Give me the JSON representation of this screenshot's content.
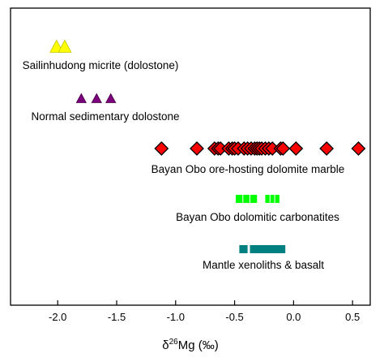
{
  "chart_data": {
    "type": "scatter",
    "xlim": [
      -2.4,
      0.65
    ],
    "xticks": [
      -2.0,
      -1.5,
      -1.0,
      -0.5,
      0.0,
      0.5
    ],
    "xtick_labels": [
      "-2.0",
      "-1.5",
      "-1.0",
      "-0.5",
      "0.0",
      "0.5"
    ],
    "xlabel": {
      "prefix": "δ",
      "sup": "26",
      "main": "Mg (‰)"
    },
    "grid": false,
    "groups": [
      {
        "label": "Sailinhudong micrite (dolostone)",
        "marker": "triangle",
        "color": "#ffff00",
        "x": [
          -2.01,
          -1.94
        ]
      },
      {
        "label": "Normal sedimentary dolostone",
        "marker": "triangle",
        "color": "#7b007b",
        "x": [
          -1.8,
          -1.67,
          -1.55
        ]
      },
      {
        "label": "Bayan Obo ore-hosting dolomite marble",
        "marker": "diamond",
        "color": "#ff0000",
        "x": [
          -1.12,
          -0.82,
          -0.67,
          -0.64,
          -0.62,
          -0.55,
          -0.52,
          -0.5,
          -0.47,
          -0.42,
          -0.39,
          -0.36,
          -0.33,
          -0.31,
          -0.29,
          -0.27,
          -0.24,
          -0.21,
          -0.18,
          -0.11,
          -0.09,
          0.02,
          0.28,
          0.55
        ]
      },
      {
        "label": "Bayan Obo dolomitic carbonatites",
        "marker": "bar",
        "color": "#00ff00",
        "segments": [
          [
            -0.49,
            -0.31
          ],
          [
            -0.24,
            -0.12
          ]
        ]
      },
      {
        "label": "Mantle xenoliths & basalt",
        "marker": "bar",
        "color": "#008080",
        "segments": [
          [
            -0.46,
            -0.39
          ],
          [
            -0.37,
            -0.07
          ]
        ]
      }
    ]
  }
}
